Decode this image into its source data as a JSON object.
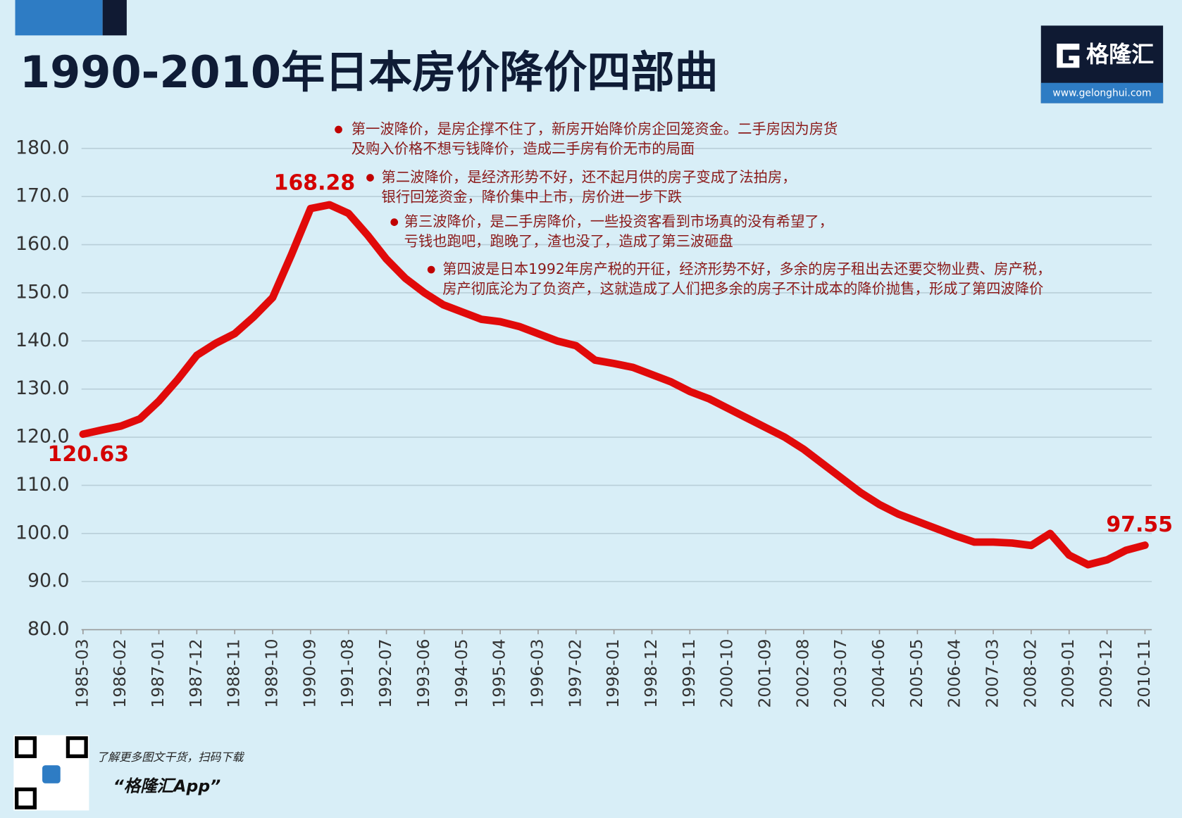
{
  "chart_data": {
    "type": "line",
    "title": "1990-2010年日本房价降价四部曲",
    "categories": [
      "1985-03",
      null,
      "1986-02",
      null,
      "1987-01",
      null,
      "1987-12",
      null,
      "1988-11",
      null,
      "1989-10",
      null,
      "1990-09",
      null,
      "1991-08",
      null,
      "1992-07",
      null,
      "1993-06",
      null,
      "1994-05",
      null,
      "1995-04",
      null,
      "1996-03",
      null,
      "1997-02",
      null,
      "1998-01",
      null,
      "1998-12",
      null,
      "1999-11",
      null,
      "2000-10",
      null,
      "2001-09",
      null,
      "2002-08",
      null,
      "2003-07",
      null,
      "2004-06",
      null,
      "2005-05",
      null,
      "2006-04",
      null,
      "2007-03",
      null,
      "2008-02",
      null,
      "2009-01",
      null,
      "2009-12",
      null,
      "2010-11"
    ],
    "values": [
      120.63,
      121.5,
      122.3,
      123.8,
      127.5,
      132,
      137,
      139.5,
      141.5,
      145,
      149,
      158,
      167.5,
      168.28,
      166.5,
      162,
      157,
      153,
      150,
      147.5,
      146,
      144.5,
      144,
      143,
      141.5,
      140,
      139,
      136,
      135.3,
      134.5,
      133,
      131.5,
      129.5,
      128,
      126,
      124,
      122,
      120,
      117.5,
      114.5,
      111.5,
      108.5,
      106,
      104,
      102.5,
      101,
      99.5,
      98.2,
      98.2,
      98,
      97.5,
      100,
      95.5,
      93.5,
      94.5,
      96.5,
      97.55
    ],
    "color": "#e10a0a",
    "ylim": [
      80,
      180
    ],
    "yticks": [
      {
        "value": 80,
        "label": "80.0"
      },
      {
        "value": 90,
        "label": "90.0"
      },
      {
        "value": 100,
        "label": "100.0"
      },
      {
        "value": 110,
        "label": "110.0"
      },
      {
        "value": 120,
        "label": "120.0"
      },
      {
        "value": 130,
        "label": "130.0"
      },
      {
        "value": 140,
        "label": "140.0"
      },
      {
        "value": 150,
        "label": "150.0"
      },
      {
        "value": 160,
        "label": "160.0"
      },
      {
        "value": 170,
        "label": "170.0"
      },
      {
        "value": 180,
        "label": "180.0"
      }
    ],
    "grid": true,
    "annotations": [
      [
        "第一波降价，是房企撑不住了，新房开始降价房企回笼资金。二手房因为房货",
        "及购入价格不想亏钱降价，造成二手房有价无市的局面"
      ],
      [
        "第二波降价，是经济形势不好，还不起月供的房子变成了法拍房，",
        "银行回笼资金，降价集中上市，房价进一步下跌"
      ],
      [
        "第三波降价，是二手房降价，一些投资客看到市场真的没有希望了，",
        "亏钱也跑吧，跑晚了，渣也没了，造成了第三波砸盘"
      ],
      [
        "第四波是日本1992年房产税的开征，经济形势不好，多余的房子租出去还要交物业费、房产税，",
        "房产彻底沦为了负资产，这就造成了人们把多余的房子不计成本的降价抛售，形成了第四波降价"
      ]
    ]
  },
  "logo": {
    "name": "格隆汇",
    "url": "www.gelonghui.com"
  },
  "promo": {
    "text": "了解更多图文干货，扫码下载",
    "app": "“格隆汇App”"
  }
}
